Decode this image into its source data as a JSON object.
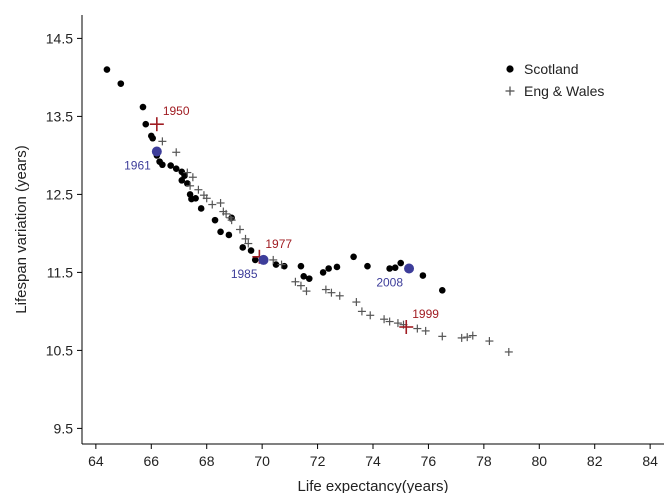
{
  "chart_data": {
    "type": "scatter",
    "title": "",
    "xlabel": "Life expectancy(years)",
    "ylabel": "Lifespan variation (years)",
    "xlim": [
      63.5,
      84.5
    ],
    "ylim": [
      9.3,
      14.8
    ],
    "xticks": [
      64,
      66,
      68,
      70,
      72,
      74,
      76,
      78,
      80,
      82,
      84
    ],
    "yticks": [
      9.5,
      10.5,
      11.5,
      12.5,
      13.5,
      14.5
    ],
    "ytick_labels": [
      "9.5",
      "10.5",
      "11.5",
      "12.5",
      "13.5",
      "14.5"
    ],
    "grid": false,
    "legend_position": "top-right",
    "series": [
      {
        "name": "Scotland",
        "marker": "filled-circle",
        "color": "#000000",
        "points": [
          [
            64.4,
            14.1
          ],
          [
            64.9,
            13.92
          ],
          [
            65.7,
            13.62
          ],
          [
            65.8,
            13.4
          ],
          [
            66.0,
            13.25
          ],
          [
            66.05,
            13.22
          ],
          [
            66.2,
            13.0
          ],
          [
            66.3,
            12.92
          ],
          [
            66.4,
            12.88
          ],
          [
            66.7,
            12.87
          ],
          [
            66.9,
            12.83
          ],
          [
            67.1,
            12.79
          ],
          [
            67.2,
            12.74
          ],
          [
            67.1,
            12.68
          ],
          [
            67.3,
            12.64
          ],
          [
            67.4,
            12.5
          ],
          [
            67.45,
            12.44
          ],
          [
            67.6,
            12.45
          ],
          [
            67.8,
            12.32
          ],
          [
            68.3,
            12.17
          ],
          [
            68.5,
            12.02
          ],
          [
            68.8,
            11.98
          ],
          [
            68.9,
            12.2
          ],
          [
            69.3,
            11.82
          ],
          [
            69.6,
            11.78
          ],
          [
            69.75,
            11.66
          ],
          [
            70.5,
            11.6
          ],
          [
            70.8,
            11.58
          ],
          [
            71.4,
            11.58
          ],
          [
            71.5,
            11.45
          ],
          [
            71.7,
            11.42
          ],
          [
            72.2,
            11.5
          ],
          [
            72.4,
            11.55
          ],
          [
            72.7,
            11.57
          ],
          [
            73.3,
            11.7
          ],
          [
            73.8,
            11.58
          ],
          [
            74.6,
            11.55
          ],
          [
            74.8,
            11.56
          ],
          [
            75.0,
            11.62
          ],
          [
            75.8,
            11.46
          ],
          [
            76.5,
            11.27
          ]
        ]
      },
      {
        "name": "Eng & Wales",
        "marker": "plus",
        "color": "#555555",
        "points": [
          [
            66.4,
            13.18
          ],
          [
            66.9,
            13.04
          ],
          [
            67.3,
            12.78
          ],
          [
            67.4,
            12.61
          ],
          [
            67.5,
            12.72
          ],
          [
            67.7,
            12.56
          ],
          [
            67.9,
            12.49
          ],
          [
            68.0,
            12.45
          ],
          [
            68.2,
            12.37
          ],
          [
            68.5,
            12.39
          ],
          [
            68.6,
            12.28
          ],
          [
            68.7,
            12.25
          ],
          [
            68.85,
            12.2
          ],
          [
            68.9,
            12.17
          ],
          [
            69.2,
            12.05
          ],
          [
            69.4,
            11.93
          ],
          [
            69.5,
            11.87
          ],
          [
            70.4,
            11.66
          ],
          [
            70.7,
            11.6
          ],
          [
            71.2,
            11.38
          ],
          [
            71.4,
            11.33
          ],
          [
            71.6,
            11.26
          ],
          [
            72.3,
            11.28
          ],
          [
            72.5,
            11.24
          ],
          [
            72.8,
            11.2
          ],
          [
            73.4,
            11.12
          ],
          [
            73.6,
            11.0
          ],
          [
            73.9,
            10.95
          ],
          [
            74.4,
            10.9
          ],
          [
            74.6,
            10.87
          ],
          [
            74.9,
            10.85
          ],
          [
            75.1,
            10.83
          ],
          [
            75.6,
            10.78
          ],
          [
            75.9,
            10.75
          ],
          [
            76.5,
            10.68
          ],
          [
            77.2,
            10.66
          ],
          [
            77.4,
            10.67
          ],
          [
            77.6,
            10.69
          ],
          [
            78.2,
            10.62
          ],
          [
            78.9,
            10.48
          ]
        ]
      }
    ],
    "highlights": [
      {
        "label": "1950",
        "x": 66.2,
        "y": 13.4,
        "marker": "plus",
        "color": "#a01c22",
        "label_anchor": "upper-right"
      },
      {
        "label": "1961",
        "x": 66.2,
        "y": 13.05,
        "marker": "circle",
        "color": "#3d3d9a",
        "label_anchor": "lower-left"
      },
      {
        "label": "1977",
        "x": 69.9,
        "y": 11.7,
        "marker": "plus",
        "color": "#a01c22",
        "label_anchor": "upper-right"
      },
      {
        "label": "1985",
        "x": 70.05,
        "y": 11.66,
        "marker": "circle",
        "color": "#3d3d9a",
        "label_anchor": "lower-left"
      },
      {
        "label": "2008",
        "x": 75.3,
        "y": 11.55,
        "marker": "circle",
        "color": "#3d3d9a",
        "label_anchor": "lower-left"
      },
      {
        "label": "1999",
        "x": 75.2,
        "y": 10.8,
        "marker": "plus",
        "color": "#a01c22",
        "label_anchor": "upper-right"
      }
    ]
  }
}
